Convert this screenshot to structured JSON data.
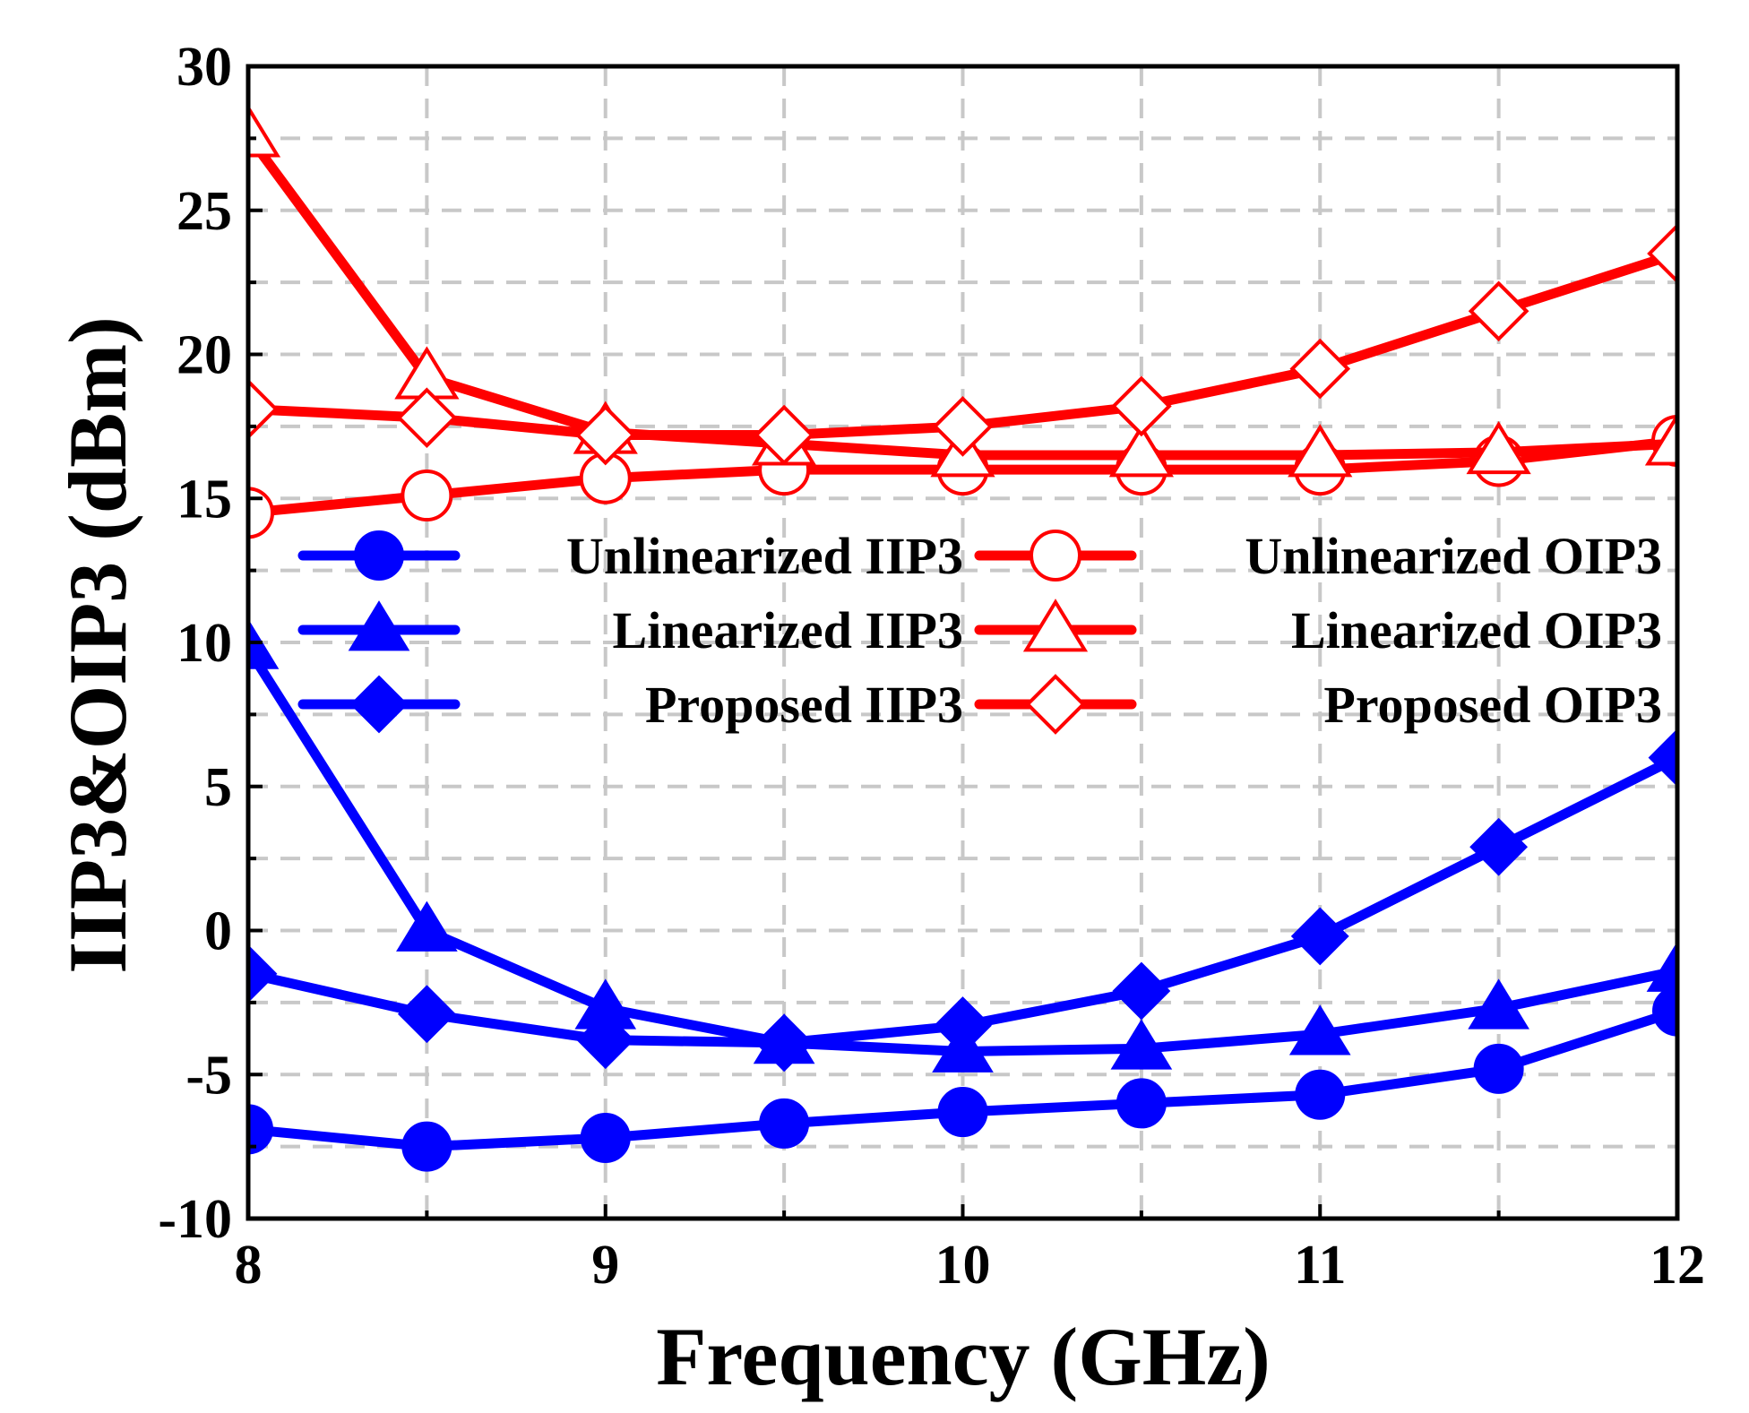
{
  "chart_data": {
    "type": "line",
    "title": "",
    "xlabel": "Frequency (GHz)",
    "ylabel": "IIP3&OIP3 (dBm)",
    "xlim": [
      8,
      12
    ],
    "ylim": [
      -10,
      30
    ],
    "xticks": [
      8,
      9,
      10,
      11,
      12
    ],
    "yticks": [
      -10,
      -5,
      0,
      5,
      10,
      15,
      20,
      25,
      30
    ],
    "x": [
      8,
      8.5,
      9,
      9.5,
      10,
      10.5,
      11,
      11.5,
      12
    ],
    "grid": true,
    "legend_position": "center",
    "series": [
      {
        "name": "Unlinearized IIP3",
        "color": "#0000ff",
        "marker": "circle",
        "filled": true,
        "values": [
          -6.9,
          -7.5,
          -7.2,
          -6.7,
          -6.3,
          -6.0,
          -5.7,
          -4.8,
          -2.8
        ]
      },
      {
        "name": "Linearized IIP3",
        "color": "#0000ff",
        "marker": "triangle",
        "filled": true,
        "values": [
          9.8,
          0.0,
          -2.7,
          -3.9,
          -4.2,
          -4.1,
          -3.6,
          -2.7,
          -1.4
        ]
      },
      {
        "name": "Proposed IIP3",
        "color": "#0000ff",
        "marker": "diamond",
        "filled": true,
        "values": [
          -1.5,
          -2.9,
          -3.8,
          -3.9,
          -3.3,
          -2.1,
          -0.2,
          2.9,
          6.0
        ]
      },
      {
        "name": "Unlinearized OIP3",
        "color": "#ff0000",
        "marker": "circle",
        "filled": false,
        "values": [
          14.5,
          15.1,
          15.7,
          16.0,
          16.0,
          16.0,
          16.0,
          16.3,
          17.0
        ]
      },
      {
        "name": "Linearized OIP3",
        "color": "#ff0000",
        "marker": "triangle",
        "filled": false,
        "values": [
          27.6,
          19.2,
          17.3,
          16.9,
          16.5,
          16.5,
          16.5,
          16.6,
          16.9
        ]
      },
      {
        "name": "Proposed OIP3",
        "color": "#ff0000",
        "marker": "diamond",
        "filled": false,
        "values": [
          18.1,
          17.8,
          17.2,
          17.2,
          17.5,
          18.2,
          19.5,
          21.5,
          23.5
        ]
      }
    ]
  }
}
